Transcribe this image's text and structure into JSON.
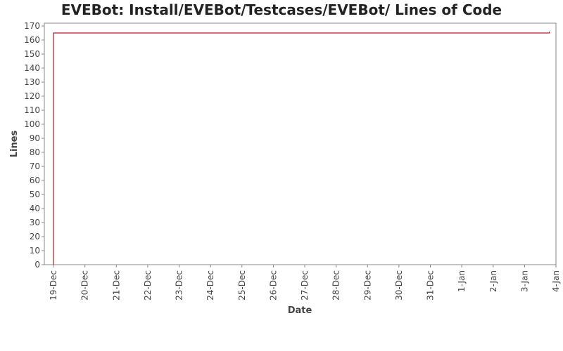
{
  "chart_data": {
    "type": "line",
    "title": "EVEBot: Install/EVEBot/Testcases/EVEBot/ Lines of Code",
    "xlabel": "Date",
    "ylabel": "Lines",
    "x_ticks": [
      "19-Dec",
      "20-Dec",
      "21-Dec",
      "22-Dec",
      "23-Dec",
      "24-Dec",
      "25-Dec",
      "26-Dec",
      "27-Dec",
      "28-Dec",
      "29-Dec",
      "30-Dec",
      "31-Dec",
      "1-Jan",
      "2-Jan",
      "3-Jan",
      "4-Jan"
    ],
    "xlim": [
      "2007-12-18T17:00",
      "2008-01-04T00:00"
    ],
    "ylim": [
      0,
      172
    ],
    "y_ticks": [
      0,
      10,
      20,
      30,
      40,
      50,
      60,
      70,
      80,
      90,
      100,
      110,
      120,
      130,
      140,
      150,
      160,
      170
    ],
    "grid": false,
    "legend": "none",
    "colors": {
      "series": "#b02020",
      "axis": "#888888"
    },
    "series": [
      {
        "values": [
          {
            "x": "2007-12-19T00:00",
            "y": 0
          },
          {
            "x": "2007-12-19T00:00",
            "y": 165
          },
          {
            "x": "2008-01-03T19:00",
            "y": 165
          },
          {
            "x": "2008-01-03T19:00",
            "y": 166
          }
        ]
      }
    ]
  }
}
